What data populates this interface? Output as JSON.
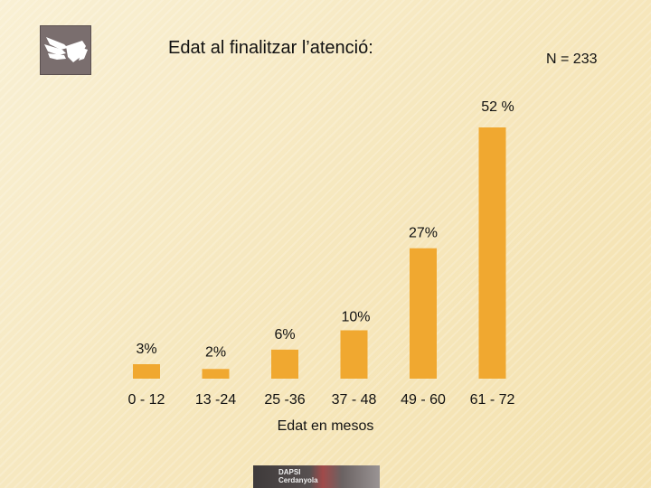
{
  "slide": {
    "title": "Edat al finalitzar l’atenció:",
    "n_label": "N = 233",
    "logo_icon": "hands-icon",
    "footer_logo_line1": "DAPSI",
    "footer_logo_line2": "Cerdanyola"
  },
  "chart_data": {
    "type": "bar",
    "categories": [
      "0 - 12",
      "13 -24",
      "25 -36",
      "37 - 48",
      "49 - 60",
      "61 - 72"
    ],
    "values": [
      3,
      2,
      6,
      10,
      27,
      52
    ],
    "data_labels": [
      "3%",
      "2%",
      "6%",
      "10%",
      "27%",
      "52 %"
    ],
    "title": "Edat al finalitzar l’atenció:",
    "xlabel": "Edat en mesos",
    "ylabel": "",
    "unit": "%",
    "ylim": [
      0,
      52
    ],
    "grid": false,
    "legend": "none",
    "bar_color": "#f0a830"
  }
}
